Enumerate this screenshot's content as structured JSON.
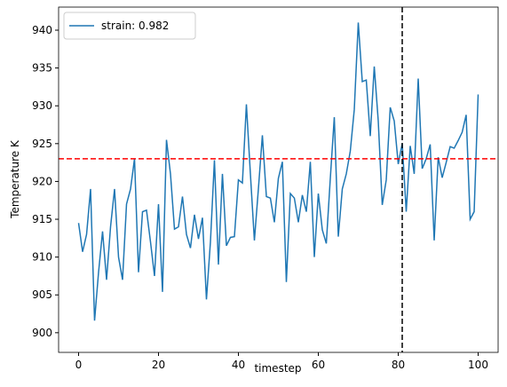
{
  "chart_data": {
    "type": "line",
    "xlabel": "timestep",
    "ylabel": "Temperature K",
    "x": [
      0,
      1,
      2,
      3,
      4,
      5,
      6,
      7,
      8,
      9,
      10,
      11,
      12,
      13,
      14,
      15,
      16,
      17,
      18,
      19,
      20,
      21,
      22,
      23,
      24,
      25,
      26,
      27,
      28,
      29,
      30,
      31,
      32,
      33,
      34,
      35,
      36,
      37,
      38,
      39,
      40,
      41,
      42,
      43,
      44,
      45,
      46,
      47,
      48,
      49,
      50,
      51,
      52,
      53,
      54,
      55,
      56,
      57,
      58,
      59,
      60,
      61,
      62,
      63,
      64,
      65,
      66,
      67,
      68,
      69,
      70,
      71,
      72,
      73,
      74,
      75,
      76,
      77,
      78,
      79,
      80,
      81,
      82,
      83,
      84,
      85,
      86,
      87,
      88,
      89,
      90,
      91,
      92,
      93,
      94,
      95,
      96,
      97,
      98,
      99,
      100
    ],
    "series": [
      {
        "name": "strain: 0.982",
        "color": "#1f77b4",
        "values": [
          914.5,
          910.7,
          913,
          919,
          901.6,
          908,
          913.4,
          907,
          914,
          919,
          910,
          907,
          917,
          919,
          923,
          908,
          916,
          916.2,
          912,
          907.5,
          917,
          905.4,
          925.5,
          921,
          913.7,
          914,
          918,
          913,
          911.2,
          915.6,
          912.4,
          915.2,
          904.4,
          912,
          922.8,
          909,
          921,
          911.5,
          912.6,
          912.7,
          920.2,
          919.8,
          930.2,
          921,
          912.2,
          919,
          926.1,
          918,
          917.8,
          914.6,
          920.4,
          922.6,
          906.7,
          918.4,
          917.8,
          914.6,
          918.2,
          916,
          922.6,
          910,
          918.4,
          913.6,
          911.8,
          920.4,
          928.5,
          912.7,
          919,
          921,
          924,
          929.5,
          941,
          933.2,
          933.4,
          926,
          935.2,
          928,
          916.9,
          920.2,
          929.8,
          928,
          922.3,
          925,
          916,
          924.7,
          921,
          933.6,
          921.7,
          923,
          924.9,
          912.2,
          923.2,
          920.5,
          922.5,
          924.6,
          924.4,
          925.4,
          926.5,
          928.8,
          915,
          916,
          931.5
        ]
      }
    ],
    "hlines": [
      {
        "value": 923,
        "color": "#ff0000"
      }
    ],
    "vlines": [
      {
        "value": 81,
        "color": "#000000"
      }
    ],
    "xlim": [
      -5,
      105
    ],
    "ylim": [
      897.4,
      943.05
    ],
    "xticks": [
      0,
      20,
      40,
      60,
      80,
      100
    ],
    "yticks": [
      900,
      905,
      910,
      915,
      920,
      925,
      930,
      935,
      940
    ],
    "legend": "upper left"
  }
}
